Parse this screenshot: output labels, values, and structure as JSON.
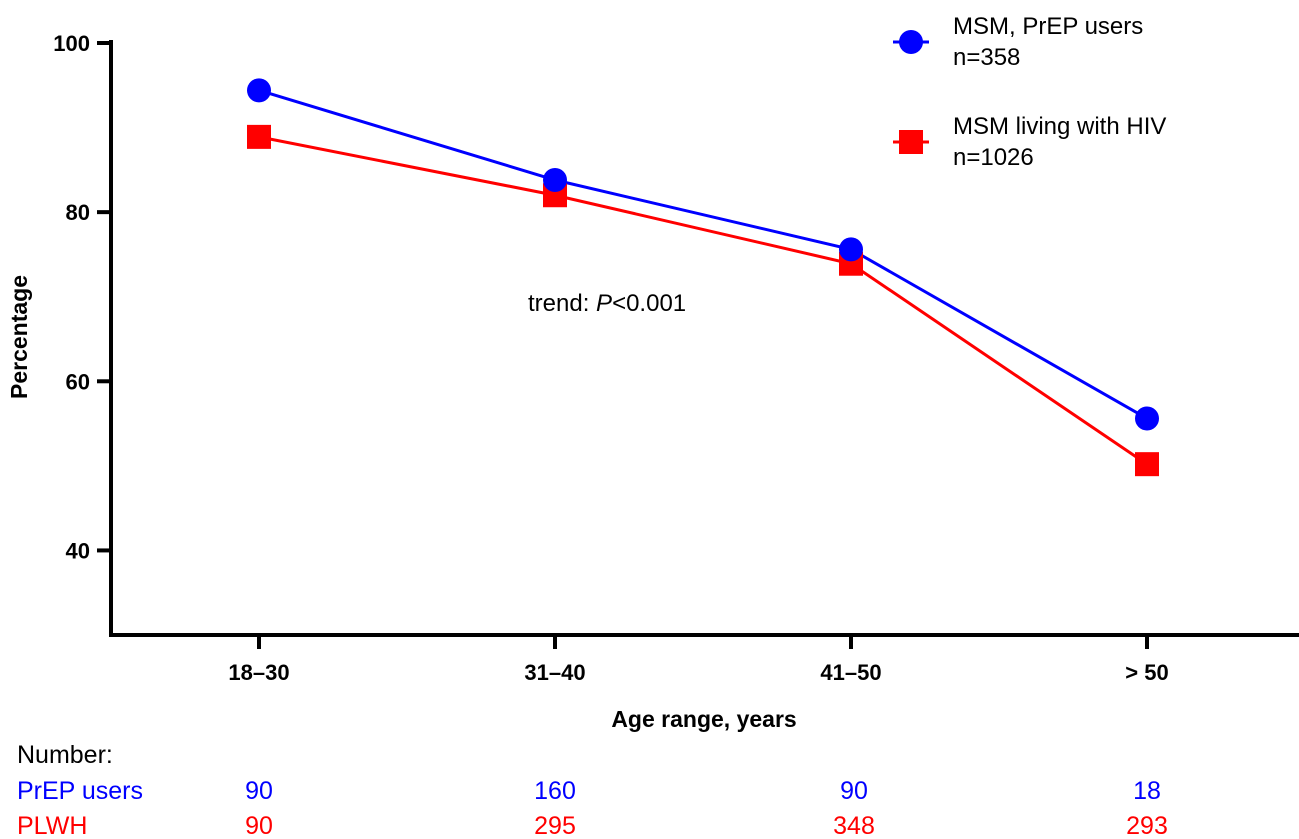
{
  "chart_data": {
    "type": "line",
    "xlabel": "Age range, years",
    "ylabel": "Percentage",
    "categories": [
      "18–30",
      "31–40",
      "41–50",
      "> 50"
    ],
    "ylim": [
      30,
      100
    ],
    "yticks": [
      40,
      60,
      80,
      100
    ],
    "grid": false,
    "legend_position": "top-right",
    "series": [
      {
        "name": "MSM, PrEP users",
        "n_label": "n=358",
        "color": "#0000ff",
        "marker": "circle",
        "values": [
          94.4,
          83.8,
          75.6,
          55.6
        ]
      },
      {
        "name": "MSM living with HIV",
        "n_label": "n=1026",
        "color": "#ff0000",
        "marker": "square",
        "values": [
          88.9,
          82.0,
          73.9,
          50.2
        ]
      }
    ],
    "annotation": {
      "prefix": "trend: ",
      "italic": "P",
      "suffix": "<0.001"
    },
    "counts": {
      "heading": "Number:",
      "rows": [
        {
          "label": "PrEP users",
          "color": "#0000ff",
          "values": [
            "90",
            "160",
            "90",
            "18"
          ]
        },
        {
          "label": "PLWH",
          "color": "#ff0000",
          "values": [
            "90",
            "295",
            "348",
            "293"
          ]
        }
      ]
    }
  }
}
